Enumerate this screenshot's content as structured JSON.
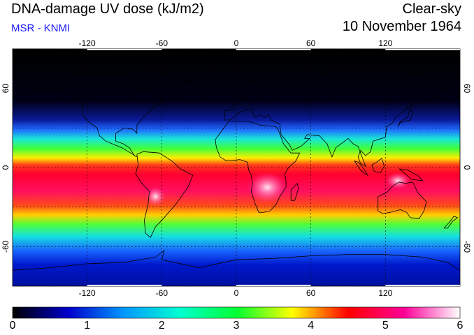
{
  "header": {
    "title": "DNA-damage UV dose (kJ/m2)",
    "subtitle": "MSR - KNMI",
    "product": "Clear-sky",
    "date": "10 November 1964"
  },
  "map": {
    "projection": "equirectangular",
    "lon_range": [
      -180,
      180
    ],
    "lat_range": [
      -90,
      90
    ],
    "lon_ticks": [
      {
        "value": -120,
        "label": "-120"
      },
      {
        "value": -60,
        "label": "-60"
      },
      {
        "value": 0,
        "label": "0"
      },
      {
        "value": 60,
        "label": "60"
      },
      {
        "value": 120,
        "label": "120"
      }
    ],
    "lat_ticks": [
      {
        "value": 60,
        "label": "60"
      },
      {
        "value": 0,
        "label": "0"
      },
      {
        "value": -60,
        "label": "-60"
      }
    ],
    "gridlines": "dotted",
    "coastlines": true
  },
  "colorbar": {
    "min": 0,
    "max": 6,
    "labels": [
      "0",
      "1",
      "2",
      "3",
      "4",
      "5",
      "6"
    ],
    "colors": [
      "#000000",
      "#0000cc",
      "#0099ff",
      "#00ffd0",
      "#00ff33",
      "#ffff00",
      "#ff0000",
      "#ff0099",
      "#ffffff"
    ]
  }
}
